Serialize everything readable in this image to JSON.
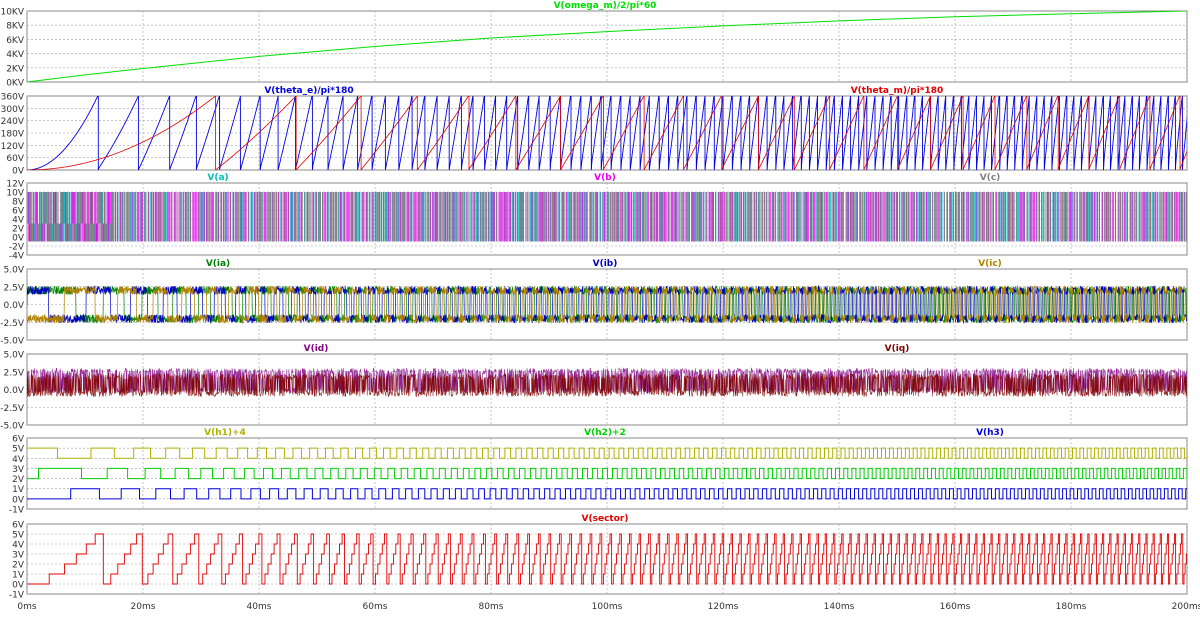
{
  "chart_data": [
    {
      "type": "line",
      "ylim": [
        0,
        10
      ],
      "yticks": [
        "10KV",
        "8KV",
        "6KV",
        "4KV",
        "2KV",
        "0KV"
      ],
      "ytick_values": [
        10,
        8,
        6,
        4,
        2,
        0
      ],
      "grid": true,
      "series": [
        {
          "name": "V(omega_m)/2/pi*60",
          "color": "#00e000",
          "style": "speed",
          "x": [
            0,
            10,
            20,
            40,
            60,
            80,
            100,
            120,
            140,
            160,
            180,
            200
          ],
          "values": [
            0,
            1.0,
            1.9,
            3.6,
            5.0,
            6.2,
            7.1,
            7.9,
            8.6,
            9.2,
            9.6,
            10.0
          ]
        }
      ]
    },
    {
      "type": "line",
      "ylim": [
        0,
        360
      ],
      "yticks": [
        "360V",
        "300V",
        "240V",
        "180V",
        "120V",
        "60V",
        "0V"
      ],
      "ytick_values": [
        360,
        300,
        240,
        180,
        120,
        60,
        0
      ],
      "grid": true,
      "series": [
        {
          "name": "V(theta_e)/pi*180",
          "color": "#0000e0",
          "style": "sawtooth",
          "x": [
            0,
            4,
            9,
            12.2
          ],
          "values": [
            0,
            35,
            180,
            360
          ],
          "period_ms": [
            12.2,
            6,
            2.2,
            1.6
          ]
        },
        {
          "name": "V(theta_m)/pi*180",
          "color": "#e00000",
          "style": "sawtooth",
          "x": [
            0,
            10,
            20,
            32.5
          ],
          "values": [
            0,
            30,
            140,
            360
          ],
          "period_ms": [
            32.5,
            12,
            7.5,
            6.5
          ]
        }
      ]
    },
    {
      "type": "line",
      "ylim": [
        -4,
        12
      ],
      "yticks": [
        "12V",
        "10V",
        "8V",
        "6V",
        "4V",
        "2V",
        "0V",
        "-2V",
        "-4V"
      ],
      "ytick_values": [
        12,
        10,
        8,
        6,
        4,
        2,
        0,
        -2,
        -4
      ],
      "grid": true,
      "series": [
        {
          "name": "V(a)",
          "color": "#00c0c0",
          "style": "pwm",
          "values": [
            -1,
            10
          ]
        },
        {
          "name": "V(b)",
          "color": "#f000f0",
          "style": "pwm",
          "values": [
            -1,
            10
          ]
        },
        {
          "name": "V(c)",
          "color": "#808080",
          "style": "pwm",
          "values": [
            -1,
            10
          ]
        }
      ]
    },
    {
      "type": "line",
      "ylim": [
        -5,
        5
      ],
      "yticks": [
        "5.0V",
        "2.5V",
        "0.0V",
        "-2.5V",
        "-5.0V"
      ],
      "ytick_values": [
        5,
        2.5,
        0,
        -2.5,
        -5
      ],
      "grid": true,
      "series": [
        {
          "name": "V(ia)",
          "color": "#008000",
          "style": "ac",
          "values": [
            -2.0,
            2.0
          ]
        },
        {
          "name": "V(ib)",
          "color": "#0000c0",
          "style": "ac",
          "values": [
            -2.0,
            2.0
          ]
        },
        {
          "name": "V(ic)",
          "color": "#b08000",
          "style": "ac",
          "values": [
            -2.0,
            2.0
          ]
        }
      ]
    },
    {
      "type": "line",
      "ylim": [
        -5,
        5
      ],
      "yticks": [
        "5.0V",
        "2.5V",
        "0.0V",
        "-2.5V",
        "-5.0V"
      ],
      "ytick_values": [
        5,
        2.5,
        0,
        -2.5,
        -5
      ],
      "grid": true,
      "series": [
        {
          "name": "V(id)",
          "color": "#800080",
          "style": "band",
          "values": [
            -0.5,
            3.0
          ]
        },
        {
          "name": "V(iq)",
          "color": "#800000",
          "style": "band",
          "values": [
            -1.0,
            2.2
          ]
        }
      ]
    },
    {
      "type": "line",
      "ylim": [
        -1,
        6
      ],
      "yticks": [
        "6V",
        "5V",
        "4V",
        "3V",
        "2V",
        "1V",
        "0V",
        "-1V"
      ],
      "ytick_values": [
        6,
        5,
        4,
        3,
        2,
        1,
        0,
        -1
      ],
      "grid": true,
      "series": [
        {
          "name": "V(h1)+4",
          "color": "#b0b000",
          "style": "hall",
          "values": [
            4,
            5
          ]
        },
        {
          "name": "V(h2)+2",
          "color": "#00d000",
          "style": "hall",
          "values": [
            2,
            3
          ]
        },
        {
          "name": "V(h3)",
          "color": "#0000e0",
          "style": "hall",
          "values": [
            0,
            1
          ]
        }
      ]
    },
    {
      "type": "line",
      "ylim": [
        -1,
        6
      ],
      "yticks": [
        "6V",
        "5V",
        "4V",
        "3V",
        "2V",
        "1V",
        "0V",
        "-1V"
      ],
      "ytick_values": [
        6,
        5,
        4,
        3,
        2,
        1,
        0,
        -1
      ],
      "grid": true,
      "series": [
        {
          "name": "V(sector)",
          "color": "#e00000",
          "style": "staircase",
          "values": [
            0,
            1,
            2,
            3,
            4,
            5
          ]
        }
      ]
    }
  ],
  "x_axis": {
    "range_ms": [
      0,
      200
    ],
    "tick_values": [
      0,
      20,
      40,
      60,
      80,
      100,
      120,
      140,
      160,
      180,
      200
    ],
    "tick_labels": [
      "0ms",
      "20ms",
      "40ms",
      "60ms",
      "80ms",
      "100ms",
      "120ms",
      "140ms",
      "160ms",
      "180ms",
      "200ms"
    ]
  }
}
